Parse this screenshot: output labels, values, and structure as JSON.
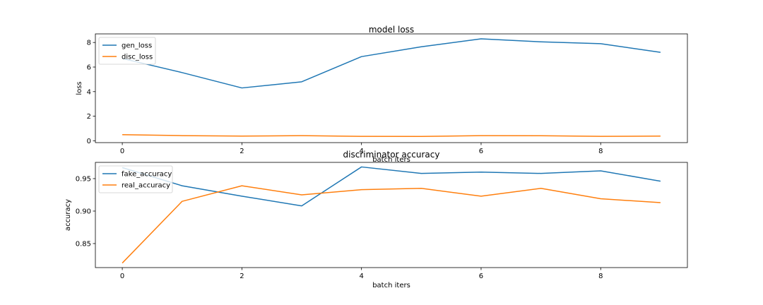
{
  "chart_data": [
    {
      "type": "line",
      "title": "model loss",
      "xlabel": "batch iters",
      "ylabel": "loss",
      "xlim": [
        -0.45,
        9.45
      ],
      "ylim": [
        -0.15,
        8.7
      ],
      "xticks": [
        0,
        2,
        4,
        6,
        8
      ],
      "yticks": [
        0,
        2,
        4,
        6,
        8
      ],
      "xtick_labels": [
        "0",
        "2",
        "4",
        "6",
        "8"
      ],
      "ytick_labels": [
        "0",
        "2",
        "4",
        "6",
        "8"
      ],
      "legend": "top-left",
      "grid": false,
      "x": [
        0,
        1,
        2,
        3,
        4,
        5,
        6,
        7,
        8,
        9
      ],
      "series": [
        {
          "name": "gen_loss",
          "color": "#1f77b4",
          "values": [
            6.7,
            5.55,
            4.3,
            4.8,
            6.85,
            7.65,
            8.3,
            8.05,
            7.9,
            7.2
          ]
        },
        {
          "name": "disc_loss",
          "color": "#ff7f0e",
          "values": [
            0.5,
            0.42,
            0.38,
            0.42,
            0.36,
            0.35,
            0.42,
            0.41,
            0.36,
            0.38
          ]
        }
      ]
    },
    {
      "type": "line",
      "title": "discriminator accuracy",
      "xlabel": "batch iters",
      "ylabel": "accuracy",
      "xlim": [
        -0.45,
        9.45
      ],
      "ylim": [
        0.813,
        0.975
      ],
      "xticks": [
        0,
        2,
        4,
        6,
        8
      ],
      "yticks": [
        0.85,
        0.9,
        0.95
      ],
      "xtick_labels": [
        "0",
        "2",
        "4",
        "6",
        "8"
      ],
      "ytick_labels": [
        "0.85",
        "0.90",
        "0.95"
      ],
      "legend": "top-left",
      "grid": false,
      "x": [
        0,
        1,
        2,
        3,
        4,
        5,
        6,
        7,
        8,
        9
      ],
      "series": [
        {
          "name": "fake_accuracy",
          "color": "#1f77b4",
          "values": [
            0.967,
            0.939,
            0.923,
            0.908,
            0.968,
            0.958,
            0.96,
            0.958,
            0.962,
            0.946
          ]
        },
        {
          "name": "real_accuracy",
          "color": "#ff7f0e",
          "values": [
            0.82,
            0.915,
            0.939,
            0.925,
            0.933,
            0.935,
            0.923,
            0.935,
            0.919,
            0.913
          ]
        }
      ]
    }
  ]
}
